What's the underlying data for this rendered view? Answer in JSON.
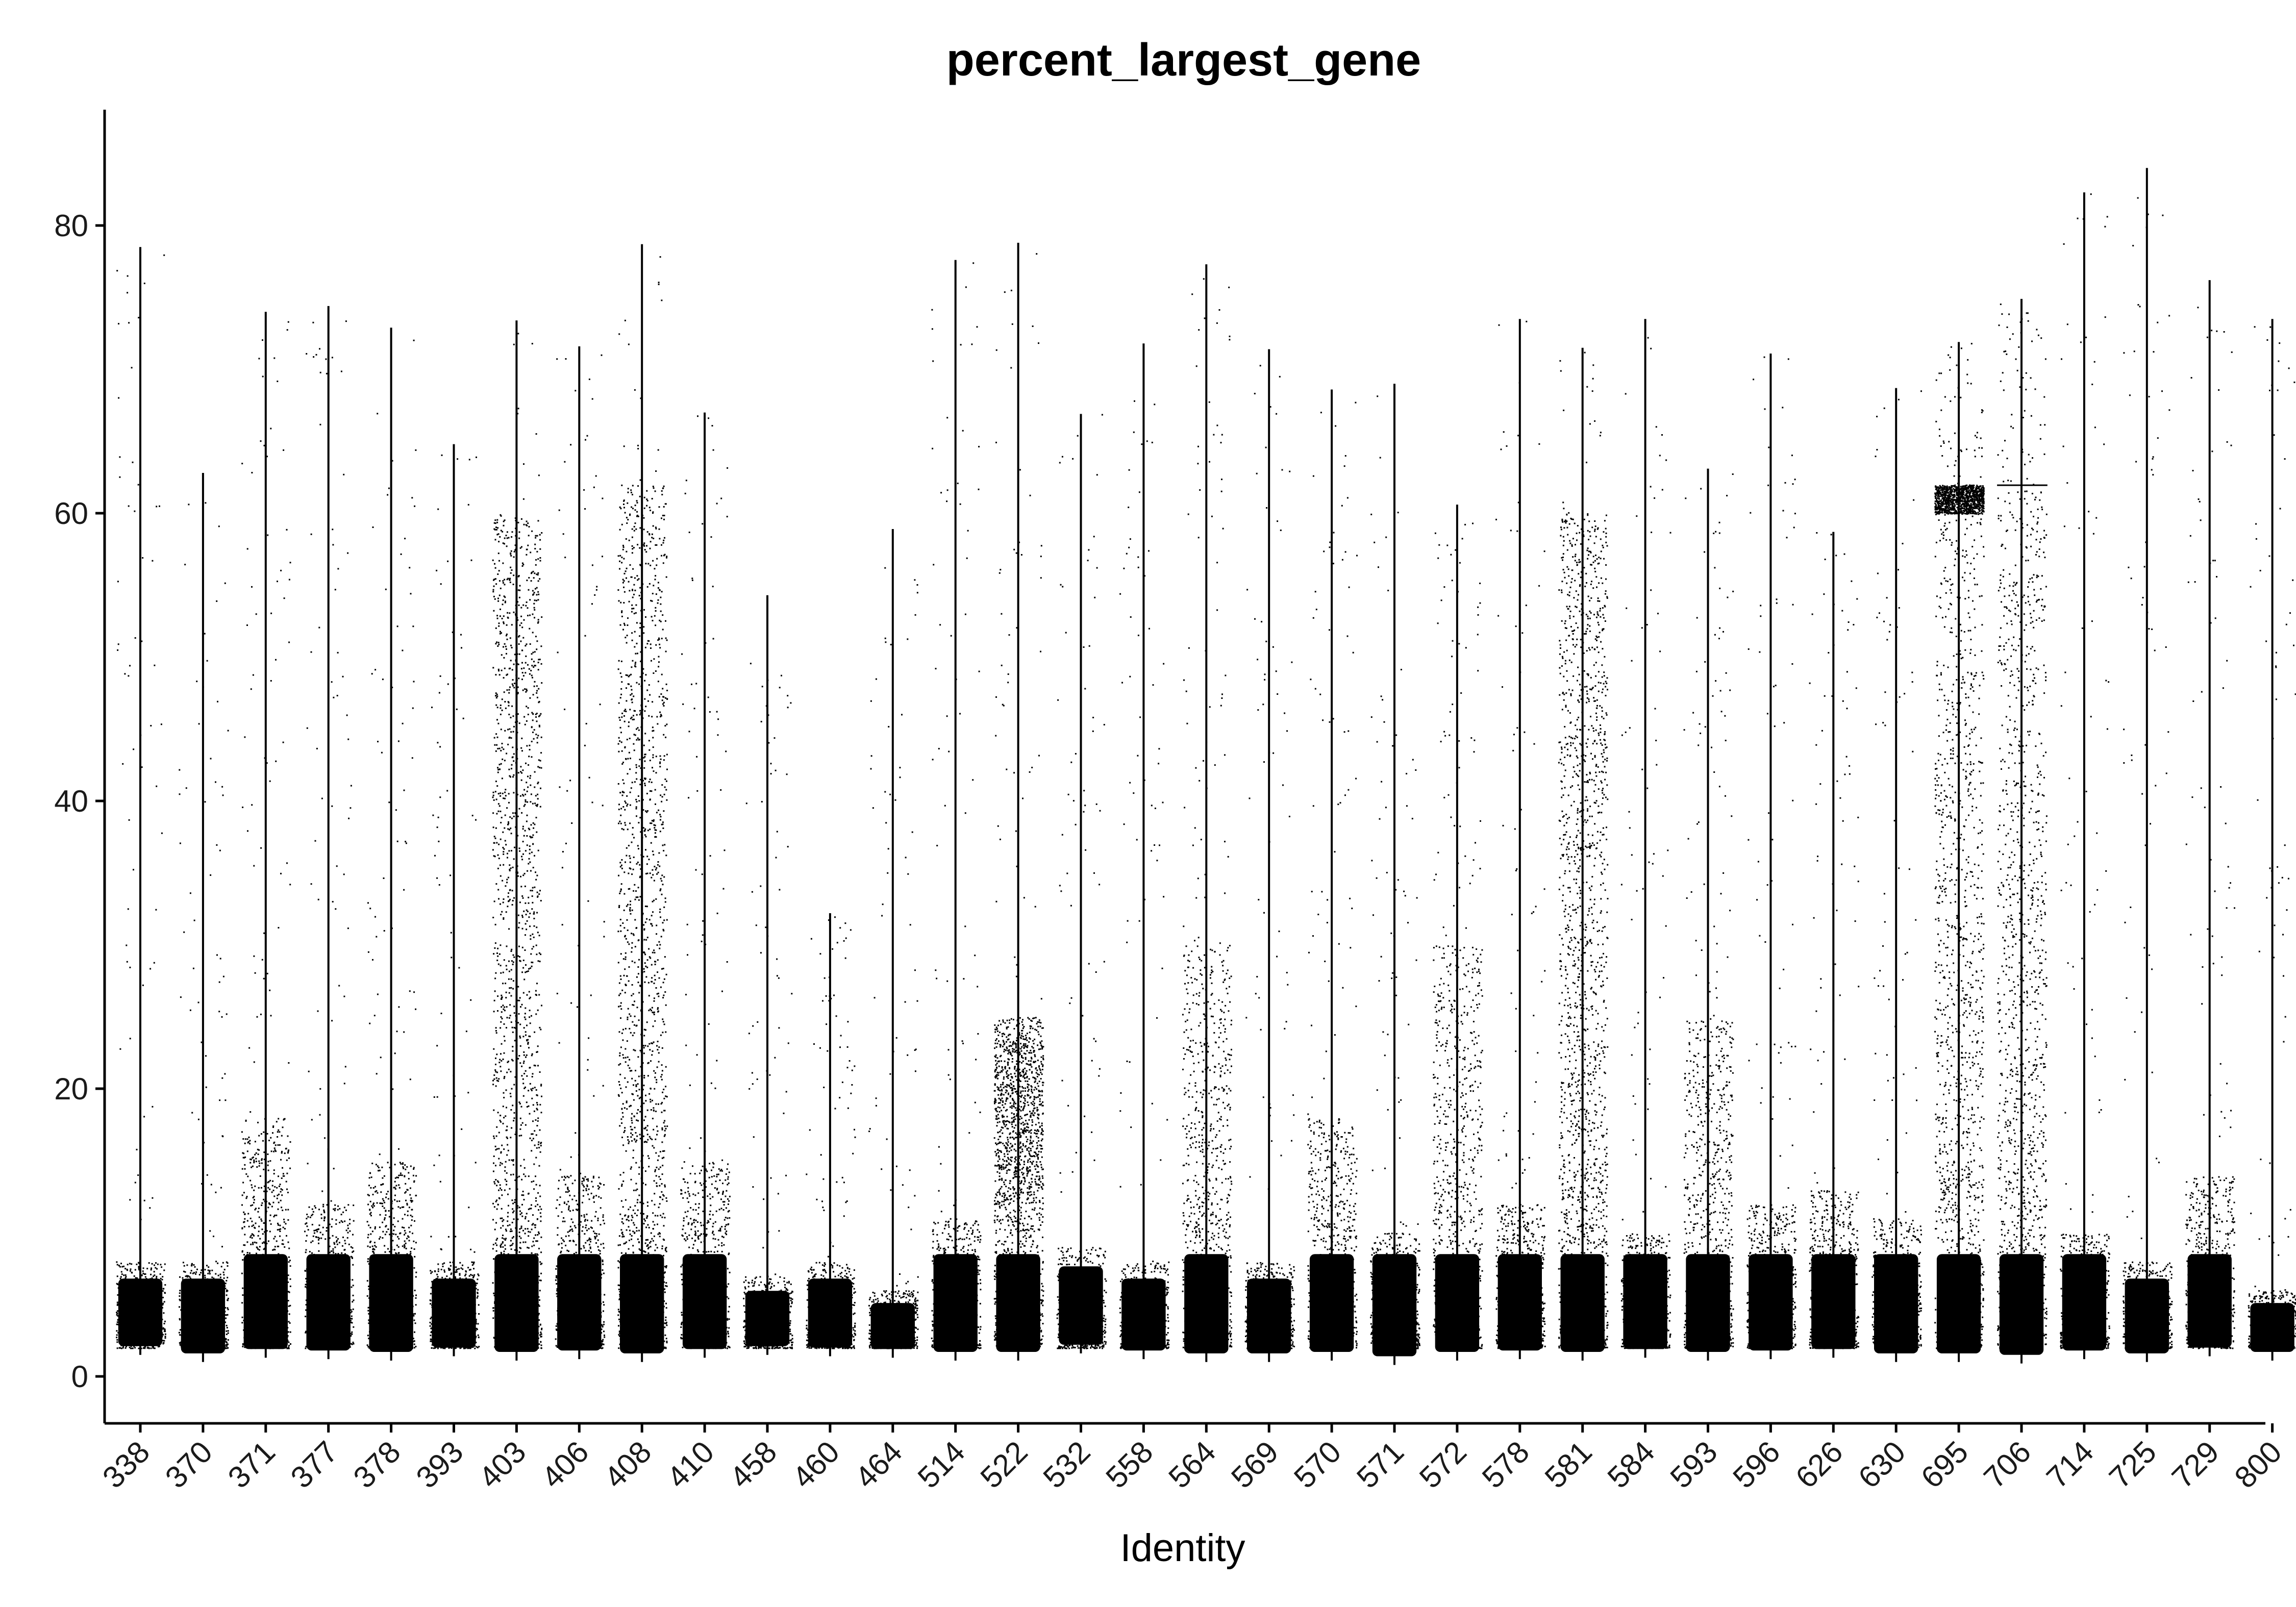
{
  "chart_data": {
    "type": "violin",
    "title": "percent_largest_gene",
    "xlabel": "Identity",
    "ylabel": "",
    "ylim": [
      -3.5,
      88
    ],
    "yticks": [
      0,
      20,
      40,
      60,
      80
    ],
    "grid": false,
    "legend": "none",
    "colors": {
      "points": "#000000",
      "violin_fill": "#1b9e77",
      "axis": "#000000"
    },
    "categories": [
      "338",
      "370",
      "371",
      "377",
      "378",
      "393",
      "403",
      "406",
      "408",
      "410",
      "458",
      "460",
      "464",
      "514",
      "522",
      "532",
      "558",
      "564",
      "569",
      "570",
      "571",
      "572",
      "578",
      "581",
      "584",
      "593",
      "596",
      "626",
      "630",
      "695",
      "706",
      "714",
      "725",
      "729",
      "800"
    ],
    "max_values": [
      78.5,
      62.8,
      74.0,
      74.4,
      72.9,
      64.8,
      73.4,
      71.6,
      78.7,
      67.0,
      54.3,
      32.2,
      58.9,
      77.6,
      78.8,
      66.9,
      71.8,
      77.3,
      71.4,
      68.6,
      69.0,
      60.6,
      73.5,
      71.5,
      73.5,
      63.1,
      71.1,
      58.7,
      68.7,
      71.9,
      74.9,
      82.3,
      84.0,
      76.2,
      73.5
    ],
    "min_values": [
      1.5,
      1.0,
      1.3,
      1.2,
      1.1,
      1.4,
      1.1,
      1.2,
      1.0,
      1.3,
      1.5,
      1.4,
      1.3,
      1.1,
      1.1,
      1.6,
      1.2,
      1.0,
      1.0,
      1.1,
      0.8,
      1.1,
      1.2,
      1.1,
      1.3,
      1.1,
      1.2,
      1.3,
      1.0,
      1.0,
      0.9,
      1.2,
      1.0,
      1.4,
      1.1
    ],
    "bulk_top": [
      8,
      8,
      18,
      12,
      15,
      8,
      12,
      14,
      12,
      15,
      7,
      8,
      6,
      11,
      12,
      9,
      8,
      30,
      8,
      18,
      10,
      30,
      12,
      14,
      10,
      25,
      12,
      13,
      11,
      60,
      62,
      10,
      8,
      14,
      6
    ],
    "dense_upper": [
      0,
      0,
      0,
      0,
      0,
      0,
      60,
      0,
      62,
      0,
      0,
      0,
      0,
      0,
      25,
      0,
      0,
      0,
      0,
      0,
      0,
      0,
      0,
      60,
      0,
      0,
      0,
      0,
      0,
      62,
      62,
      0,
      0,
      0,
      0
    ]
  }
}
